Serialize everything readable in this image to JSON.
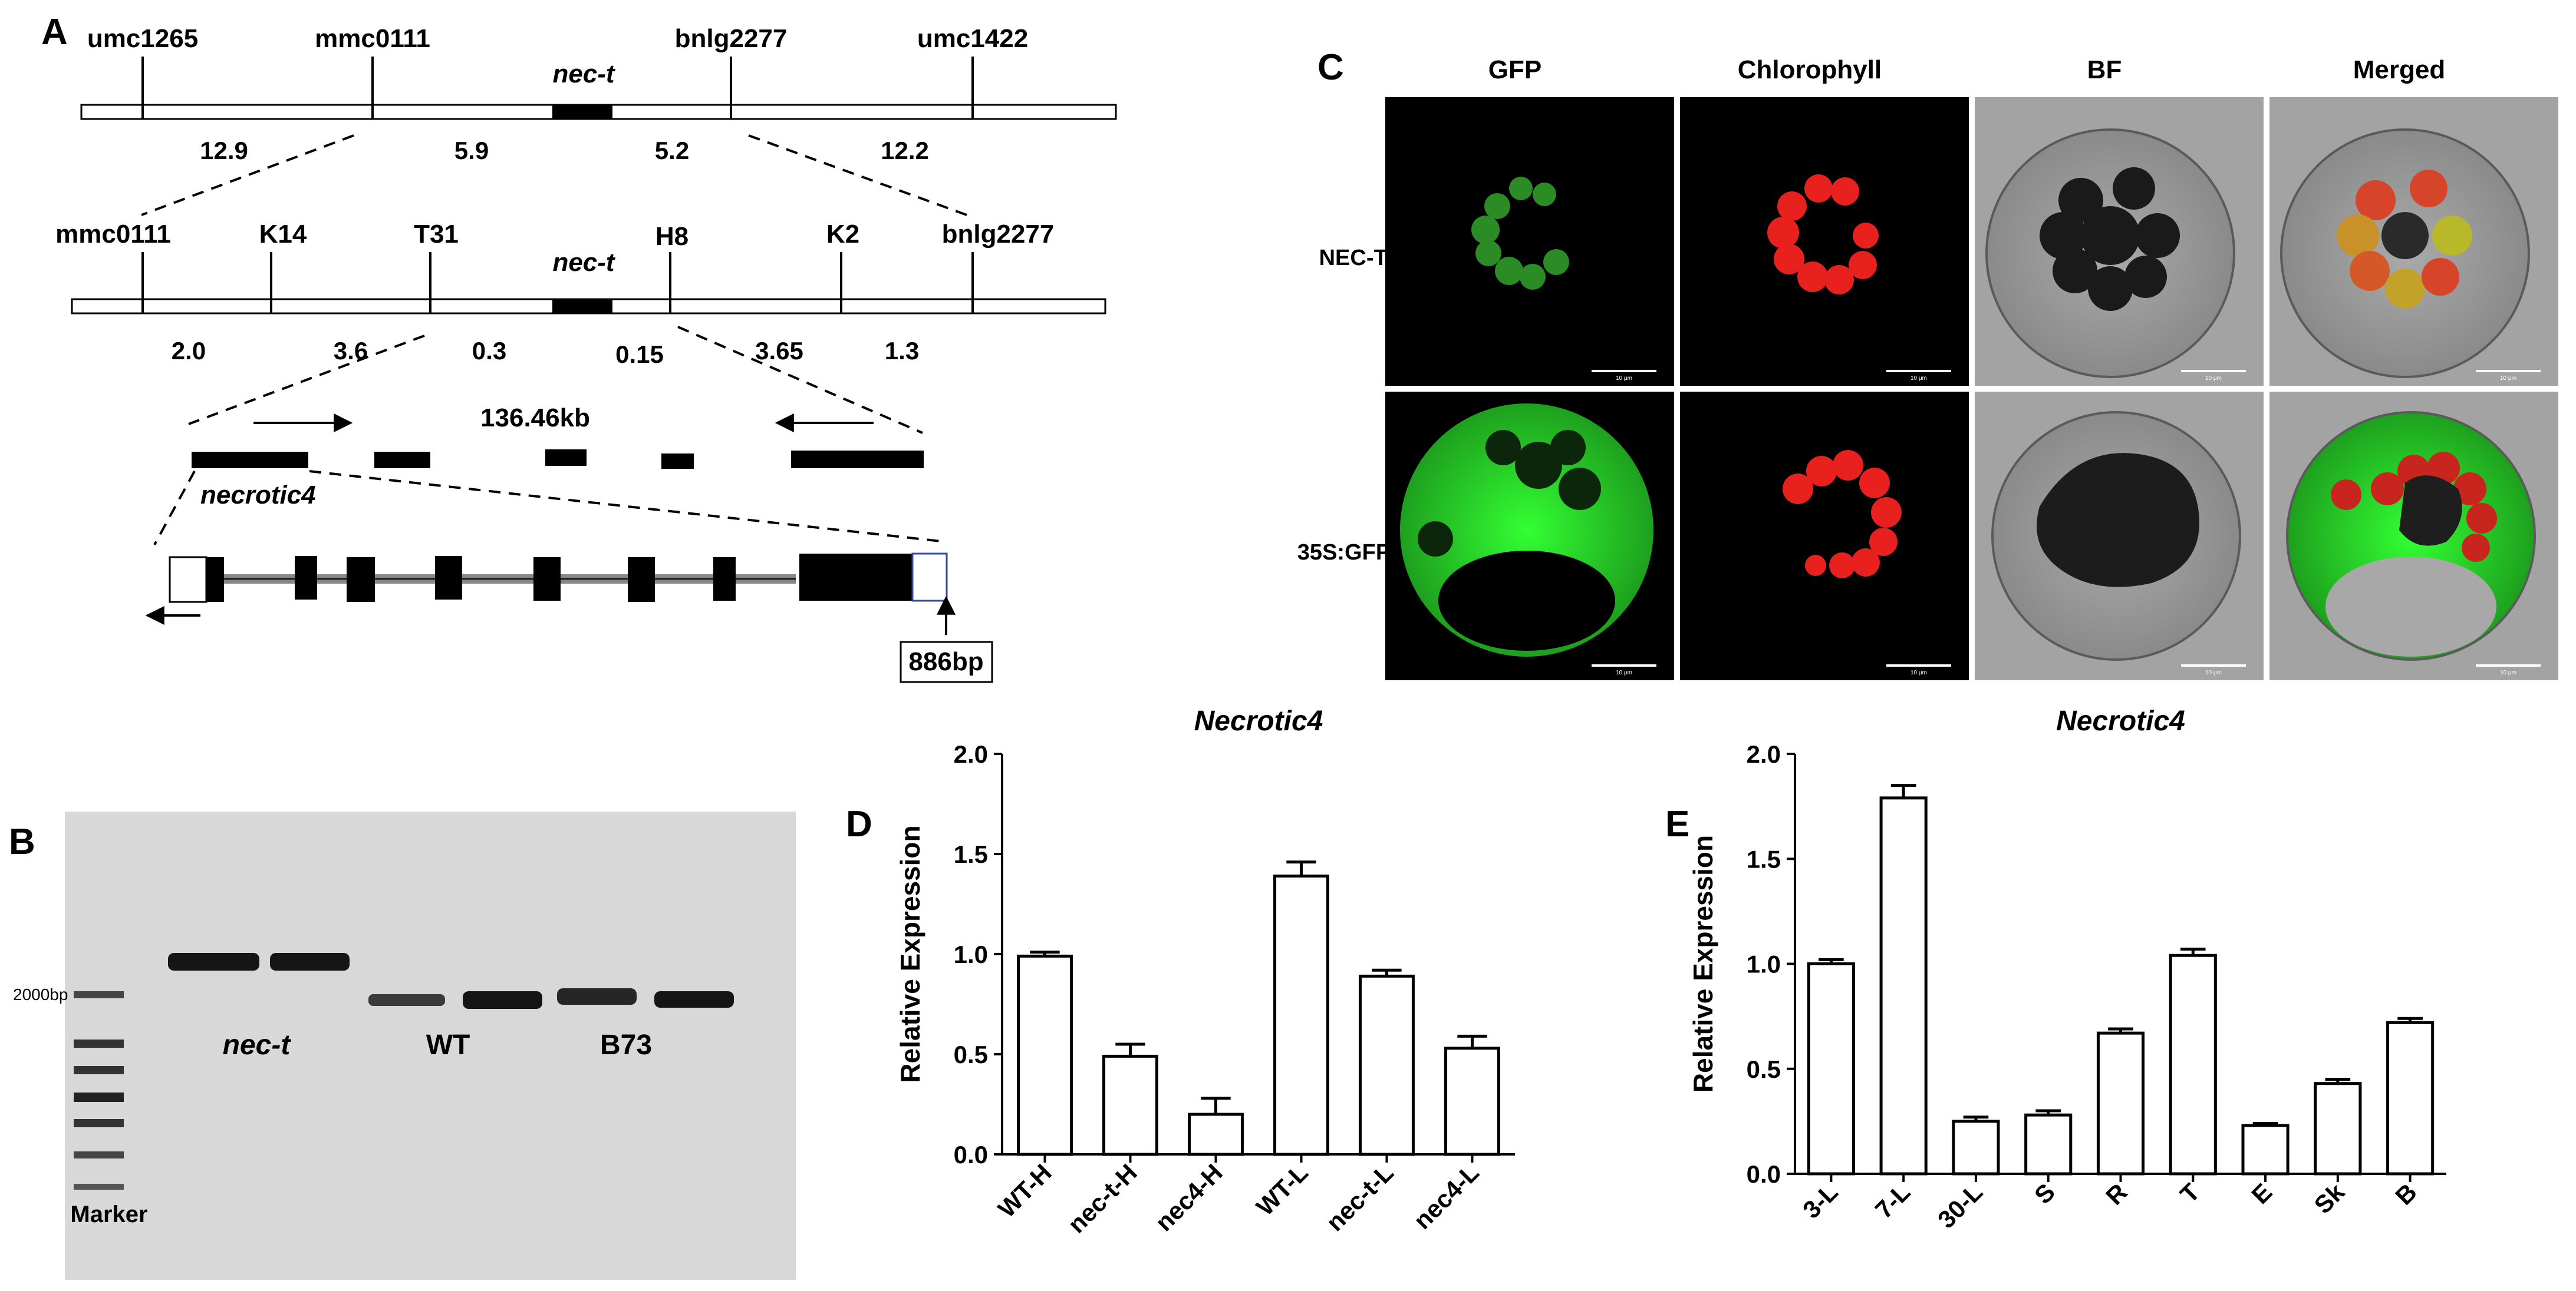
{
  "panels": {
    "a": "A",
    "b": "B",
    "c": "C",
    "d": "D",
    "e": "E"
  },
  "panel_a": {
    "map1": {
      "markers": [
        "umc1265",
        "mmc0111",
        "bnlg2277",
        "umc1422"
      ],
      "gene": "nec-t",
      "distances": [
        "12.9",
        "5.9",
        "5.2",
        "12.2"
      ]
    },
    "map2": {
      "markers": [
        "mmc0111",
        "K14",
        "T31",
        "H8",
        "K2",
        "bnlg2277"
      ],
      "gene": "nec-t",
      "distances": [
        "2.0",
        "3.6",
        "0.3",
        "0.15",
        "3.65",
        "1.3"
      ]
    },
    "contig": {
      "size": "136.46kb",
      "gene_name": "necrotic4"
    },
    "insert": "886bp"
  },
  "panel_b": {
    "marker_band": "2000bp",
    "lanes": [
      "nec-t",
      "WT",
      "B73"
    ],
    "marker_label": "Marker"
  },
  "panel_c": {
    "columns": [
      "GFP",
      "Chlorophyll",
      "BF",
      "Merged"
    ],
    "rows": [
      "NEC-T-GFP",
      "35S:GFP"
    ],
    "scale_bar": "10 μm"
  },
  "chart_data": [
    {
      "type": "bar",
      "title": "Necrotic4",
      "ylabel": "Relative Expression",
      "categories": [
        "WT-H",
        "nec-t-H",
        "nec4-H",
        "WT-L",
        "nec-t-L",
        "nec4-L"
      ],
      "values": [
        0.99,
        0.49,
        0.2,
        1.39,
        0.89,
        0.53
      ],
      "errors": [
        0.02,
        0.06,
        0.08,
        0.07,
        0.03,
        0.06
      ],
      "yticks": [
        "0.0",
        "0.5",
        "1.0",
        "1.5",
        "2.0"
      ],
      "ylim": [
        0,
        2.0
      ]
    },
    {
      "type": "bar",
      "title": "Necrotic4",
      "ylabel": "Relative Expression",
      "categories": [
        "3-L",
        "7-L",
        "30-L",
        "S",
        "R",
        "T",
        "E",
        "Sk",
        "B"
      ],
      "values": [
        1.0,
        1.79,
        0.25,
        0.28,
        0.67,
        1.04,
        0.23,
        0.43,
        0.72
      ],
      "errors": [
        0.02,
        0.06,
        0.02,
        0.02,
        0.02,
        0.03,
        0.01,
        0.02,
        0.02
      ],
      "yticks": [
        "0.0",
        "0.5",
        "1.0",
        "1.5",
        "2.0"
      ],
      "ylim": [
        0,
        2.0
      ]
    }
  ]
}
